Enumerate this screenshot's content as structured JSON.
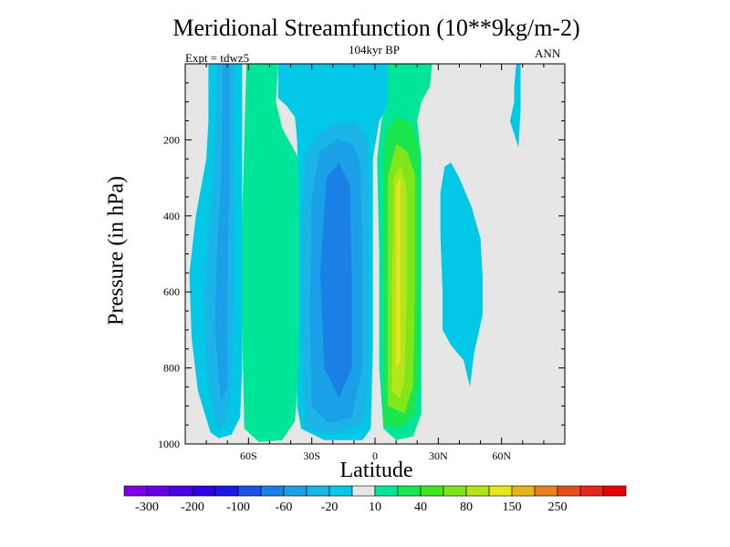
{
  "chart_data": {
    "type": "heatmap",
    "title": "Meridional Streamfunction (10**9kg/m-2)",
    "subtitle": "104kyr BP",
    "left_label": "Expt = tdwz5",
    "right_label": "ANN",
    "xlabel": "Latitude",
    "ylabel": "Pressure (in hPa)",
    "xlim": [
      -90,
      90
    ],
    "ylim": [
      1000,
      0
    ],
    "xticks": [
      {
        "value": -60,
        "label": "60S"
      },
      {
        "value": -30,
        "label": "30S"
      },
      {
        "value": 0,
        "label": "0"
      },
      {
        "value": 30,
        "label": "30N"
      },
      {
        "value": 60,
        "label": "60N"
      }
    ],
    "yticks": [
      {
        "value": 200,
        "label": "200"
      },
      {
        "value": 400,
        "label": "400"
      },
      {
        "value": 600,
        "label": "600"
      },
      {
        "value": 800,
        "label": "800"
      },
      {
        "value": 1000,
        "label": "1000"
      }
    ],
    "colorbar": {
      "colors": [
        "#7f00e6",
        "#6600e6",
        "#4d00e6",
        "#3300e6",
        "#1a1ae6",
        "#1a52e6",
        "#1a80e6",
        "#1aa0e6",
        "#1ab4e6",
        "#00c8e6",
        "#e6e6e6",
        "#00e699",
        "#1ae64d",
        "#40e61a",
        "#80e61a",
        "#b3e61a",
        "#e6e61a",
        "#e6b31a",
        "#e6801a",
        "#e64d1a",
        "#e6261a",
        "#e60000"
      ],
      "labels": [
        "-300",
        "-200",
        "-100",
        "-60",
        "-20",
        "10",
        "40",
        "80",
        "150",
        "250"
      ]
    },
    "regions": [
      {
        "level": -5,
        "points": [
          [
            -78,
            970
          ],
          [
            -84,
            860
          ],
          [
            -87,
            720
          ],
          [
            -88,
            550
          ],
          [
            -85,
            400
          ],
          [
            -80,
            250
          ],
          [
            -79,
            150
          ],
          [
            -79,
            0
          ],
          [
            -63,
            0
          ],
          [
            -63,
            200
          ],
          [
            -63,
            500
          ],
          [
            -63,
            800
          ],
          [
            -64,
            930
          ],
          [
            -68,
            975
          ],
          [
            -74,
            985
          ]
        ]
      },
      {
        "level": -10,
        "points": [
          [
            -75,
            960
          ],
          [
            -80,
            800
          ],
          [
            -81,
            600
          ],
          [
            -78,
            400
          ],
          [
            -76,
            200
          ],
          [
            -75,
            0
          ],
          [
            -67,
            0
          ],
          [
            -67,
            200
          ],
          [
            -67,
            600
          ],
          [
            -68,
            850
          ],
          [
            -71,
            950
          ]
        ]
      },
      {
        "level": -20,
        "points": [
          [
            -73,
            890
          ],
          [
            -76,
            700
          ],
          [
            -75,
            500
          ],
          [
            -73,
            300
          ],
          [
            -72,
            0
          ],
          [
            -69,
            0
          ],
          [
            -69,
            300
          ],
          [
            -70,
            600
          ],
          [
            -70,
            850
          ]
        ]
      },
      {
        "level": 5,
        "points": [
          [
            -62,
            960
          ],
          [
            -63,
            700
          ],
          [
            -63,
            400
          ],
          [
            -62,
            200
          ],
          [
            -61,
            0
          ],
          [
            -46,
            0
          ],
          [
            -47,
            100
          ],
          [
            -44,
            170
          ],
          [
            -37,
            240
          ],
          [
            -35,
            300
          ],
          [
            -34,
            400
          ],
          [
            -35,
            600
          ],
          [
            -36,
            800
          ],
          [
            -38,
            940
          ],
          [
            -44,
            990
          ],
          [
            -55,
            995
          ]
        ]
      },
      {
        "level": -5,
        "points": [
          [
            -46,
            0
          ],
          [
            -46,
            90
          ],
          [
            -42,
            110
          ],
          [
            -38,
            140
          ],
          [
            -37,
            200
          ],
          [
            -36,
            350
          ],
          [
            -36,
            700
          ],
          [
            -37,
            900
          ],
          [
            -35,
            960
          ],
          [
            -24,
            990
          ],
          [
            -6,
            990
          ],
          [
            -2,
            960
          ],
          [
            -1,
            750
          ],
          [
            -1,
            500
          ],
          [
            -1,
            250
          ],
          [
            2,
            150
          ],
          [
            8,
            100
          ],
          [
            14,
            60
          ],
          [
            16,
            0
          ]
        ]
      },
      {
        "level": -10,
        "points": [
          [
            -33,
            960
          ],
          [
            -35,
            700
          ],
          [
            -35,
            400
          ],
          [
            -33,
            240
          ],
          [
            -28,
            190
          ],
          [
            -20,
            160
          ],
          [
            -10,
            150
          ],
          [
            -4,
            190
          ],
          [
            -3,
            300
          ],
          [
            -3,
            600
          ],
          [
            -3,
            850
          ],
          [
            -6,
            950
          ],
          [
            -20,
            975
          ]
        ]
      },
      {
        "level": -20,
        "points": [
          [
            -30,
            900
          ],
          [
            -31,
            650
          ],
          [
            -30,
            350
          ],
          [
            -26,
            230
          ],
          [
            -18,
            200
          ],
          [
            -11,
            210
          ],
          [
            -7,
            260
          ],
          [
            -6,
            500
          ],
          [
            -6,
            800
          ],
          [
            -11,
            930
          ],
          [
            -22,
            945
          ]
        ]
      },
      {
        "level": -40,
        "points": [
          [
            -24,
            800
          ],
          [
            -26,
            550
          ],
          [
            -23,
            300
          ],
          [
            -17,
            260
          ],
          [
            -12,
            320
          ],
          [
            -11,
            550
          ],
          [
            -11,
            800
          ],
          [
            -17,
            880
          ]
        ]
      },
      {
        "level": 5,
        "points": [
          [
            6,
            0
          ],
          [
            6,
            100
          ],
          [
            3,
            150
          ],
          [
            1,
            250
          ],
          [
            2,
            500
          ],
          [
            2,
            800
          ],
          [
            4,
            960
          ],
          [
            10,
            990
          ],
          [
            18,
            980
          ],
          [
            22,
            920
          ],
          [
            22,
            700
          ],
          [
            22,
            400
          ],
          [
            22,
            250
          ],
          [
            20,
            150
          ],
          [
            22,
            100
          ],
          [
            26,
            60
          ],
          [
            27,
            0
          ]
        ]
      },
      {
        "level": 10,
        "points": [
          [
            4,
            950
          ],
          [
            4,
            700
          ],
          [
            4,
            400
          ],
          [
            4,
            250
          ],
          [
            5,
            180
          ],
          [
            10,
            140
          ],
          [
            17,
            155
          ],
          [
            21,
            220
          ],
          [
            21,
            500
          ],
          [
            21,
            800
          ],
          [
            19,
            920
          ],
          [
            12,
            960
          ]
        ]
      },
      {
        "level": 20,
        "points": [
          [
            6,
            900
          ],
          [
            6,
            600
          ],
          [
            6,
            300
          ],
          [
            10,
            210
          ],
          [
            15,
            230
          ],
          [
            19,
            290
          ],
          [
            19,
            600
          ],
          [
            18,
            850
          ],
          [
            14,
            920
          ]
        ]
      },
      {
        "level": 40,
        "points": [
          [
            8,
            860
          ],
          [
            8,
            600
          ],
          [
            9,
            300
          ],
          [
            12,
            265
          ],
          [
            15,
            330
          ],
          [
            15,
            600
          ],
          [
            14,
            830
          ],
          [
            12,
            880
          ]
        ]
      },
      {
        "level": 60,
        "points": [
          [
            10,
            800
          ],
          [
            10,
            500
          ],
          [
            10,
            320
          ],
          [
            12,
            300
          ],
          [
            12,
            500
          ],
          [
            12,
            780
          ]
        ]
      },
      {
        "level": -5,
        "points": [
          [
            32,
            600
          ],
          [
            31,
            450
          ],
          [
            31,
            340
          ],
          [
            33,
            270
          ],
          [
            36,
            260
          ],
          [
            40,
            300
          ],
          [
            46,
            380
          ],
          [
            50,
            460
          ],
          [
            51,
            560
          ],
          [
            51,
            660
          ],
          [
            47,
            760
          ],
          [
            45,
            850
          ],
          [
            42,
            780
          ],
          [
            36,
            740
          ],
          [
            32,
            700
          ]
        ]
      },
      {
        "level": -5,
        "points": [
          [
            67,
            0
          ],
          [
            69,
            0
          ],
          [
            69,
            120
          ],
          [
            68,
            220
          ],
          [
            64,
            150
          ],
          [
            66,
            100
          ],
          [
            66,
            60
          ]
        ]
      }
    ]
  }
}
